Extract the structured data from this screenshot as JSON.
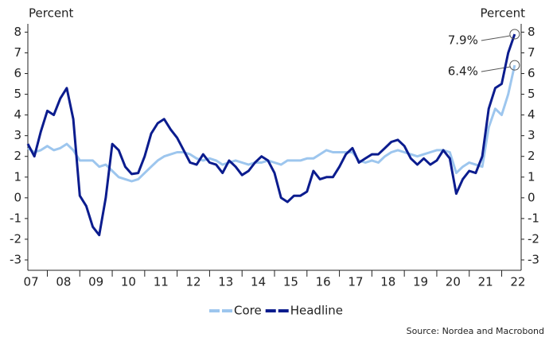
{
  "chart_data": {
    "type": "line",
    "y_label": "Percent",
    "y2_label": "Percent",
    "source": "Source: Nordea and Macrobond",
    "x": [
      7.4,
      7.6,
      7.8,
      8.0,
      8.2,
      8.4,
      8.6,
      8.8,
      9.0,
      9.2,
      9.4,
      9.6,
      9.8,
      10.0,
      10.2,
      10.4,
      10.6,
      10.8,
      11.0,
      11.2,
      11.4,
      11.6,
      11.8,
      12.0,
      12.2,
      12.4,
      12.6,
      12.8,
      13.0,
      13.2,
      13.4,
      13.6,
      13.8,
      14.0,
      14.2,
      14.4,
      14.6,
      14.8,
      15.0,
      15.2,
      15.4,
      15.6,
      15.8,
      16.0,
      16.2,
      16.4,
      16.6,
      16.8,
      17.0,
      17.2,
      17.4,
      17.6,
      17.8,
      18.0,
      18.2,
      18.4,
      18.6,
      18.8,
      19.0,
      19.2,
      19.4,
      19.6,
      19.8,
      20.0,
      20.2,
      20.4,
      20.6,
      20.8,
      21.0,
      21.2,
      21.4,
      21.6,
      21.8,
      22.0,
      22.2,
      22.4
    ],
    "series": [
      {
        "name": "Core",
        "color": "#9dc6ee",
        "values": [
          2.4,
          2.2,
          2.3,
          2.5,
          2.3,
          2.4,
          2.6,
          2.3,
          1.8,
          1.8,
          1.8,
          1.5,
          1.6,
          1.3,
          1.0,
          0.9,
          0.8,
          0.9,
          1.2,
          1.5,
          1.8,
          2.0,
          2.1,
          2.2,
          2.2,
          2.1,
          1.9,
          1.8,
          1.9,
          1.8,
          1.6,
          1.7,
          1.8,
          1.7,
          1.6,
          1.7,
          1.7,
          1.8,
          1.7,
          1.6,
          1.8,
          1.8,
          1.8,
          1.9,
          1.9,
          2.1,
          2.3,
          2.2,
          2.2,
          2.2,
          2.2,
          1.8,
          1.7,
          1.8,
          1.7,
          2.0,
          2.2,
          2.3,
          2.2,
          2.1,
          2.0,
          2.1,
          2.2,
          2.3,
          2.3,
          2.2,
          1.2,
          1.5,
          1.7,
          1.6,
          1.5,
          3.4,
          4.3,
          4.0,
          5.0,
          6.4
        ],
        "value_labels": [
          null,
          null,
          null,
          null,
          null,
          null,
          null,
          null,
          null,
          null,
          null,
          null,
          null,
          null,
          null,
          null,
          null,
          null,
          null,
          null,
          null,
          null,
          null,
          null,
          null,
          null,
          null,
          null,
          null,
          null,
          null,
          null,
          null,
          null,
          null,
          null,
          null,
          null,
          null,
          null,
          null,
          null,
          null,
          null,
          null,
          null,
          null,
          null,
          null,
          null,
          null,
          null,
          null,
          null,
          null,
          null,
          null,
          null,
          null,
          null,
          null,
          null,
          null,
          null,
          null,
          null,
          null,
          null,
          null,
          null,
          null,
          null,
          null,
          null,
          null,
          "6.4%"
        ]
      },
      {
        "name": "Headline",
        "color": "#0b1c8e",
        "values": [
          2.6,
          2.0,
          3.2,
          4.2,
          4.0,
          4.8,
          5.3,
          3.8,
          0.1,
          -0.4,
          -1.4,
          -1.8,
          0.0,
          2.6,
          2.3,
          1.5,
          1.15,
          1.2,
          2.0,
          3.1,
          3.6,
          3.8,
          3.3,
          2.9,
          2.3,
          1.7,
          1.6,
          2.1,
          1.7,
          1.6,
          1.2,
          1.8,
          1.5,
          1.1,
          1.3,
          1.7,
          2.0,
          1.8,
          1.2,
          0.0,
          -0.2,
          0.1,
          0.1,
          0.3,
          1.3,
          0.9,
          1.0,
          1.0,
          1.5,
          2.1,
          2.4,
          1.7,
          1.9,
          2.1,
          2.1,
          2.4,
          2.7,
          2.8,
          2.5,
          1.9,
          1.6,
          1.9,
          1.6,
          1.8,
          2.3,
          1.9,
          0.2,
          0.9,
          1.3,
          1.2,
          2.0,
          4.3,
          5.3,
          5.5,
          7.0,
          7.9
        ],
        "value_labels": [
          null,
          null,
          null,
          null,
          null,
          null,
          null,
          null,
          null,
          null,
          null,
          null,
          null,
          null,
          null,
          null,
          null,
          null,
          null,
          null,
          null,
          null,
          null,
          null,
          null,
          null,
          null,
          null,
          null,
          null,
          null,
          null,
          null,
          null,
          null,
          null,
          null,
          null,
          null,
          null,
          null,
          null,
          null,
          null,
          null,
          null,
          null,
          null,
          null,
          null,
          null,
          null,
          null,
          null,
          null,
          null,
          null,
          null,
          null,
          null,
          null,
          null,
          null,
          null,
          null,
          null,
          null,
          null,
          null,
          null,
          null,
          null,
          null,
          null,
          null,
          "7.9%"
        ]
      }
    ],
    "xlim": [
      7.4,
      22.6
    ],
    "xticks": [
      {
        "value": 7.5,
        "label": "07"
      },
      {
        "value": 8.5,
        "label": "08"
      },
      {
        "value": 9.5,
        "label": "09"
      },
      {
        "value": 10.5,
        "label": "10"
      },
      {
        "value": 11.5,
        "label": "11"
      },
      {
        "value": 12.5,
        "label": "12"
      },
      {
        "value": 13.5,
        "label": "13"
      },
      {
        "value": 14.5,
        "label": "14"
      },
      {
        "value": 15.5,
        "label": "15"
      },
      {
        "value": 16.5,
        "label": "16"
      },
      {
        "value": 17.5,
        "label": "17"
      },
      {
        "value": 18.5,
        "label": "18"
      },
      {
        "value": 19.5,
        "label": "19"
      },
      {
        "value": 20.5,
        "label": "20"
      },
      {
        "value": 21.5,
        "label": "21"
      },
      {
        "value": 22.5,
        "label": "22"
      }
    ],
    "ylim": [
      -3.5,
      8.4
    ],
    "yticks": [
      -3,
      -2,
      -1,
      0,
      1,
      2,
      3,
      4,
      5,
      6,
      7,
      8
    ],
    "y2lim": [
      -3.5,
      8.4
    ],
    "y2ticks": [
      -3,
      -2,
      -1,
      0,
      1,
      2,
      3,
      4,
      5,
      6,
      7,
      8
    ],
    "legend": "bottom"
  }
}
